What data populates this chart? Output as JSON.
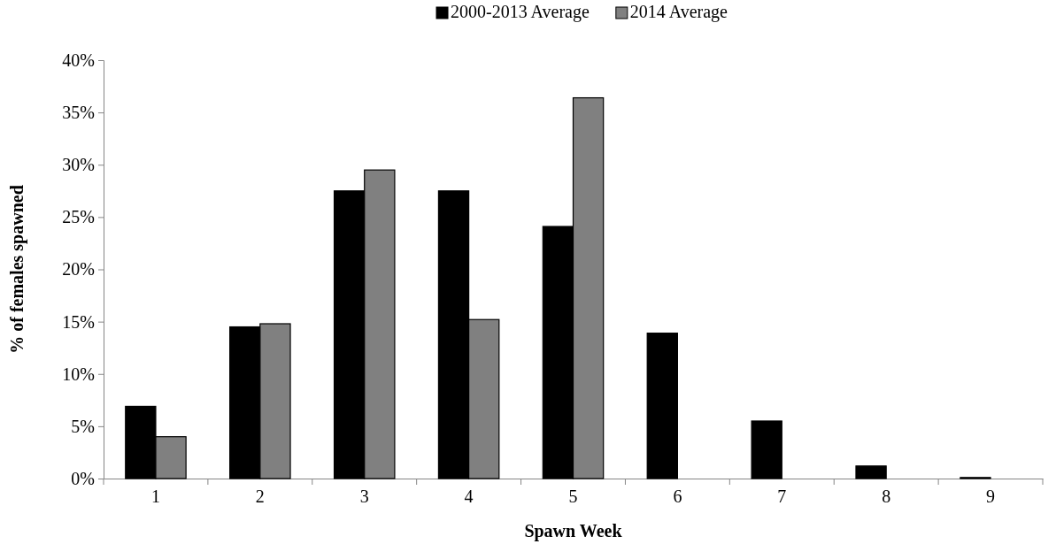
{
  "chart_data": {
    "type": "bar",
    "xlabel": "Spawn Week",
    "ylabel": "% of females spawned",
    "categories": [
      "1",
      "2",
      "3",
      "4",
      "5",
      "6",
      "7",
      "8",
      "9"
    ],
    "series": [
      {
        "name": "2000-2013 Average",
        "color": "#000000",
        "values": [
          6.9,
          14.5,
          27.5,
          27.5,
          24.1,
          13.9,
          5.5,
          1.2,
          0.1
        ]
      },
      {
        "name": "2014 Average",
        "color": "#808080",
        "values": [
          4.0,
          14.8,
          29.5,
          15.2,
          36.4,
          0,
          0,
          0,
          0
        ]
      }
    ],
    "ylim": [
      0,
      40
    ],
    "yticks": [
      {
        "value": 0,
        "label": "0%"
      },
      {
        "value": 5,
        "label": "5%"
      },
      {
        "value": 10,
        "label": "10%"
      },
      {
        "value": 15,
        "label": "15%"
      },
      {
        "value": 20,
        "label": "20%"
      },
      {
        "value": 25,
        "label": "25%"
      },
      {
        "value": 30,
        "label": "30%"
      },
      {
        "value": 35,
        "label": "35%"
      },
      {
        "value": 40,
        "label": "40%"
      }
    ],
    "grid": false,
    "legend": "top"
  }
}
